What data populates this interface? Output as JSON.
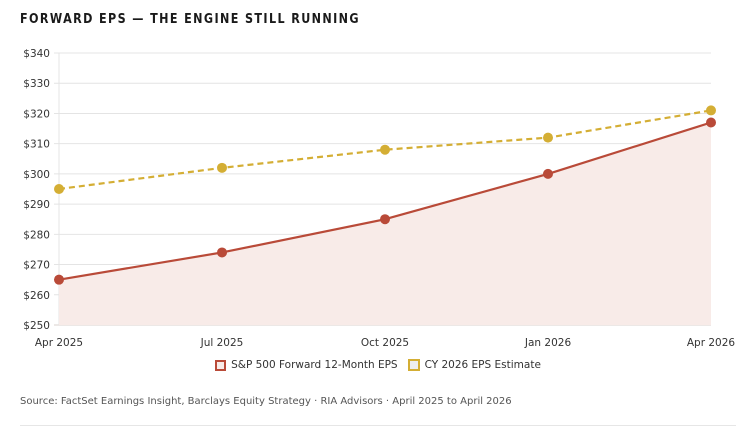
{
  "title": "FORWARD EPS — THE ENGINE STILL RUNNING",
  "source": "Source: FactSet Earnings Insight, Barclays Equity Strategy · RIA Advisors · April 2025 to April 2026",
  "colors": {
    "eps_line": "#b94a38",
    "eps_fill": "#f8ebe8",
    "estimate_line": "#d4ae34",
    "grid": "#e4e4e4",
    "text": "#333333"
  },
  "chart_data": {
    "type": "line",
    "title": "FORWARD EPS — THE ENGINE STILL RUNNING",
    "xlabel": "",
    "ylabel": "",
    "categories": [
      "Apr 2025",
      "Jul 2025",
      "Oct 2025",
      "Jan 2026",
      "Apr 2026"
    ],
    "y_tick_labels": [
      "$250",
      "$260",
      "$270",
      "$280",
      "$290",
      "$300",
      "$310",
      "$320",
      "$330",
      "$340"
    ],
    "y_ticks": [
      250,
      260,
      270,
      280,
      290,
      300,
      310,
      320,
      330,
      340
    ],
    "ylim": [
      250,
      340
    ],
    "grid": true,
    "legend_position": "bottom-center",
    "series": [
      {
        "name": "S&P 500 Forward 12-Month EPS",
        "style": "solid-area",
        "color": "#b94a38",
        "values": [
          265,
          274,
          285,
          300,
          317
        ]
      },
      {
        "name": "CY 2026 EPS Estimate",
        "style": "dashed",
        "color": "#d4ae34",
        "values": [
          295,
          302,
          308,
          312,
          321
        ]
      }
    ]
  }
}
